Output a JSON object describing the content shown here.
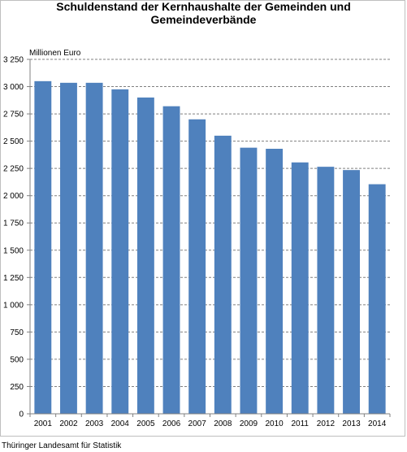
{
  "title": {
    "line1": "Schuldenstand der Kernhaushalte der Gemeinden und",
    "line2": "Gemeindeverbände"
  },
  "source": "Thüringer Landesamt für Statistik",
  "colors": {
    "bar": "#4f81bd",
    "grid": "#808080",
    "axis": "#808080"
  },
  "chart_data": {
    "type": "bar",
    "title": "Schuldenstand der Kernhaushalte der Gemeinden und Gemeindeverbände",
    "xlabel": "",
    "ylabel": "Millionen Euro",
    "categories": [
      "2001",
      "2002",
      "2003",
      "2004",
      "2005",
      "2006",
      "2007",
      "2008",
      "2009",
      "2010",
      "2011",
      "2012",
      "2013",
      "2014"
    ],
    "values": [
      3050,
      3035,
      3035,
      2975,
      2900,
      2820,
      2700,
      2550,
      2440,
      2430,
      2305,
      2265,
      2235,
      2105
    ],
    "ylim": [
      0,
      3250
    ],
    "yticks": [
      0,
      250,
      500,
      750,
      1000,
      1250,
      1500,
      1750,
      2000,
      2250,
      2500,
      2750,
      3000,
      3250
    ],
    "ytick_labels": [
      "0",
      "250",
      "500",
      "750",
      "1 000",
      "1 250",
      "1 500",
      "1 750",
      "2 000",
      "2 250",
      "2 500",
      "2 750",
      "3 000",
      "3 250"
    ],
    "grid": true,
    "legend": "none"
  }
}
